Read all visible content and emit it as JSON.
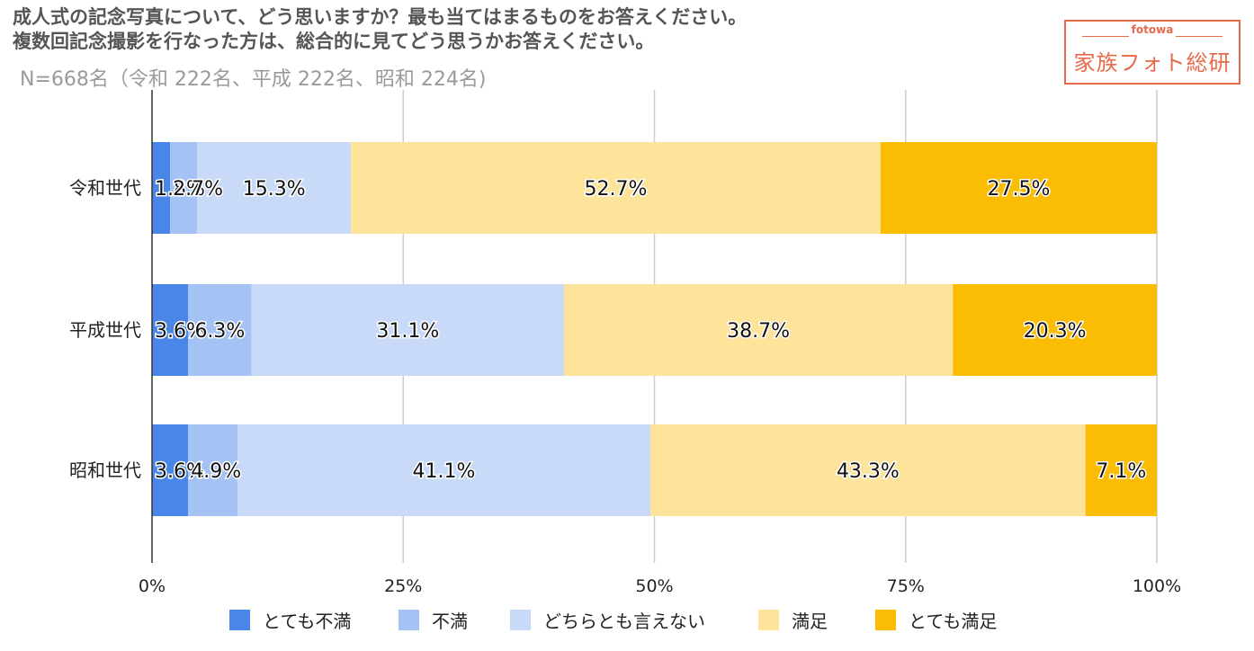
{
  "title_line1": "成人式の記念写真について、どう思いますか？最も当てはまるものをお答えください。",
  "title_line2": "複数回記念撮影を行なった方は、総合的に見てどう思うかお答えください。",
  "subtitle": "N=668名（令和 222名、平成 222名、昭和 224名)",
  "logo": {
    "small": "fotowa",
    "main": "家族フォト総研"
  },
  "chart_data": {
    "type": "bar",
    "orientation": "horizontal",
    "stacked": true,
    "percent_stacked": true,
    "categories": [
      "令和世代",
      "平成世代",
      "昭和世代"
    ],
    "series": [
      {
        "name": "とても不満",
        "color": "#4a86e8",
        "values": [
          1.8,
          3.6,
          3.6
        ],
        "labels": [
          "1.8%",
          "3.6%",
          "3.6%"
        ]
      },
      {
        "name": "不満",
        "color": "#a4c2f4",
        "values": [
          2.7,
          6.3,
          4.9
        ],
        "labels": [
          "2.7%",
          "6.3%",
          "4.9%"
        ]
      },
      {
        "name": "どちらとも言えない",
        "color": "#c9daf8",
        "values": [
          15.3,
          31.1,
          41.1
        ],
        "labels": [
          "15.3%",
          "31.1%",
          "41.1%"
        ]
      },
      {
        "name": "満足",
        "color": "#fde49a",
        "values": [
          52.7,
          38.7,
          43.3
        ],
        "labels": [
          "52.7%",
          "38.7%",
          "43.3%"
        ]
      },
      {
        "name": "とても満足",
        "color": "#fbbc04",
        "values": [
          27.5,
          20.3,
          7.1
        ],
        "labels": [
          "27.5%",
          "20.3%",
          "7.1%"
        ]
      }
    ],
    "xlim": [
      0,
      100
    ],
    "x_ticks": [
      "0%",
      "25%",
      "50%",
      "75%",
      "100%"
    ],
    "grid": true,
    "legend_position": "bottom"
  }
}
